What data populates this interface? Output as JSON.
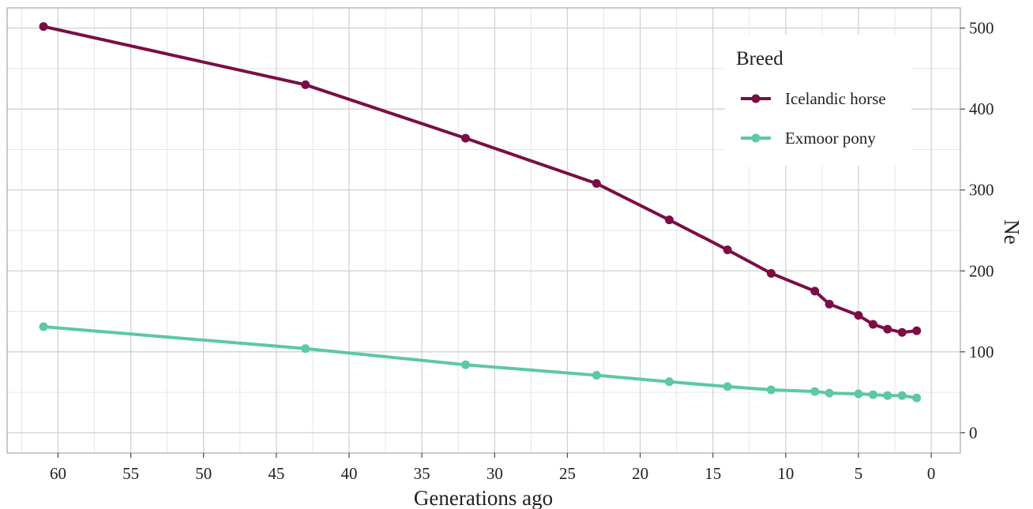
{
  "chart_data": {
    "type": "line",
    "xlabel": "Generations ago",
    "ylabel": "Ne",
    "xlim": [
      63.5,
      -2
    ],
    "ylim": [
      -25,
      525
    ],
    "x_reversed": true,
    "y_axis_side": "right",
    "xticks": [
      60,
      55,
      50,
      45,
      40,
      35,
      30,
      25,
      20,
      15,
      10,
      5,
      0
    ],
    "yticks": [
      0,
      100,
      200,
      300,
      400,
      500
    ],
    "grid": true,
    "legend": {
      "title": "Breed",
      "placement": "top-right"
    },
    "series": [
      {
        "name": "Icelandic horse",
        "color": "#7b0d45",
        "x": [
          61,
          43,
          32,
          23,
          18,
          14,
          11,
          8,
          7,
          5,
          4,
          3,
          2,
          1
        ],
        "y": [
          502,
          430,
          364,
          308,
          263,
          226,
          197,
          175,
          159,
          145,
          134,
          128,
          124,
          126
        ]
      },
      {
        "name": "Exmoor pony",
        "color": "#5cc9a0",
        "x": [
          61,
          43,
          32,
          23,
          18,
          14,
          11,
          8,
          7,
          5,
          4,
          3,
          2,
          1
        ],
        "y": [
          131,
          104,
          84,
          71,
          63,
          57,
          53,
          51,
          49,
          48,
          47,
          46,
          46,
          43
        ]
      }
    ]
  }
}
